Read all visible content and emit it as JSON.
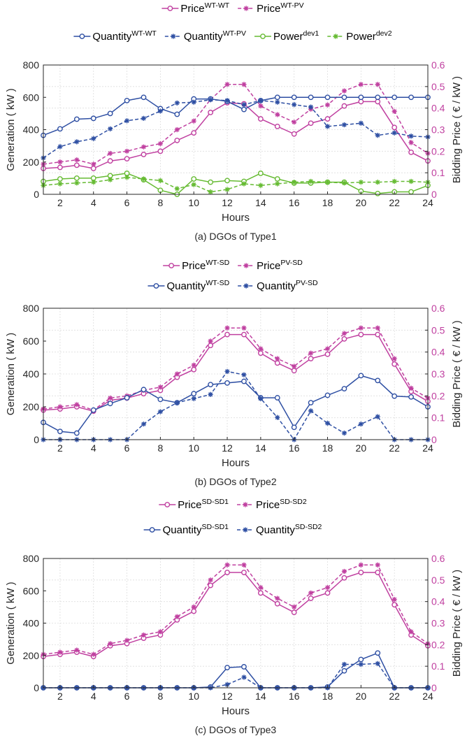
{
  "chart_data": [
    {
      "type": "line",
      "caption": "(a)  DGOs of Type1",
      "xlabel": "Hours",
      "ylabel": "Generation ( kW )",
      "y2label": "Bidding Price ( € / kW )",
      "xlim": [
        1,
        24
      ],
      "ylim": [
        0,
        800
      ],
      "y2lim": [
        0,
        0.6
      ],
      "xticks": [
        2,
        4,
        6,
        8,
        10,
        12,
        14,
        16,
        18,
        20,
        22,
        24
      ],
      "yticks": [
        0,
        200,
        400,
        600,
        800
      ],
      "y2ticks": [
        0,
        0.1,
        0.2,
        0.3,
        0.4,
        0.5,
        0.6
      ],
      "grid": true,
      "legend_placement": "top",
      "x": [
        1,
        2,
        3,
        4,
        5,
        6,
        7,
        8,
        9,
        10,
        11,
        12,
        13,
        14,
        15,
        16,
        17,
        18,
        19,
        20,
        21,
        22,
        23,
        24
      ],
      "series": [
        {
          "name": "Price",
          "sup": "WT-WT",
          "axis": "right",
          "color": "#c040a0",
          "marker": "circle",
          "dash": false,
          "values": [
            0.12,
            0.125,
            0.135,
            0.12,
            0.155,
            0.165,
            0.185,
            0.2,
            0.25,
            0.285,
            0.38,
            0.425,
            0.42,
            0.35,
            0.315,
            0.28,
            0.33,
            0.35,
            0.41,
            0.43,
            0.43,
            0.31,
            0.195,
            0.155
          ]
        },
        {
          "name": "Price",
          "sup": "WT-PV",
          "axis": "right",
          "color": "#c040a0",
          "marker": "star",
          "dash": true,
          "values": [
            0.14,
            0.15,
            0.16,
            0.14,
            0.19,
            0.2,
            0.22,
            0.235,
            0.3,
            0.34,
            0.44,
            0.51,
            0.51,
            0.41,
            0.37,
            0.335,
            0.395,
            0.415,
            0.48,
            0.51,
            0.51,
            0.385,
            0.24,
            0.19
          ]
        },
        {
          "name": "Quantity",
          "sup": "WT-WT",
          "axis": "left",
          "color": "#2e4fa3",
          "marker": "circle",
          "dash": false,
          "values": [
            365,
            405,
            465,
            470,
            500,
            580,
            600,
            530,
            495,
            590,
            590,
            575,
            525,
            580,
            600,
            600,
            600,
            600,
            600,
            600,
            600,
            600,
            600,
            600
          ]
        },
        {
          "name": "Quantity",
          "sup": "WT-PV",
          "axis": "left",
          "color": "#2e4fa3",
          "marker": "star",
          "dash": true,
          "values": [
            225,
            295,
            325,
            345,
            405,
            455,
            470,
            515,
            565,
            570,
            585,
            580,
            555,
            580,
            570,
            555,
            540,
            420,
            430,
            440,
            365,
            380,
            360,
            355
          ]
        },
        {
          "name": "Power",
          "sup": "dev1",
          "axis": "left",
          "color": "#66bb33",
          "marker": "circle",
          "dash": false,
          "values": [
            80,
            95,
            100,
            100,
            115,
            130,
            90,
            25,
            0,
            95,
            75,
            85,
            80,
            130,
            95,
            70,
            70,
            75,
            75,
            20,
            5,
            15,
            15,
            55
          ]
        },
        {
          "name": "Power",
          "sup": "dev2",
          "axis": "left",
          "color": "#66bb33",
          "marker": "star",
          "dash": true,
          "values": [
            55,
            65,
            70,
            75,
            90,
            105,
            95,
            85,
            35,
            60,
            15,
            30,
            65,
            55,
            65,
            75,
            80,
            75,
            70,
            75,
            75,
            80,
            80,
            75
          ]
        }
      ]
    },
    {
      "type": "line",
      "caption": "(b)  DGOs of Type2",
      "xlabel": "Hours",
      "ylabel": "Generation ( kW )",
      "y2label": "Bidding Price ( € / kW )",
      "xlim": [
        1,
        24
      ],
      "ylim": [
        0,
        800
      ],
      "y2lim": [
        0,
        0.6
      ],
      "xticks": [
        2,
        4,
        6,
        8,
        10,
        12,
        14,
        16,
        18,
        20,
        22,
        24
      ],
      "yticks": [
        0,
        200,
        400,
        600,
        800
      ],
      "y2ticks": [
        0,
        0.1,
        0.2,
        0.3,
        0.4,
        0.5,
        0.6
      ],
      "grid": true,
      "legend_placement": "top",
      "x": [
        1,
        2,
        3,
        4,
        5,
        6,
        7,
        8,
        9,
        10,
        11,
        12,
        13,
        14,
        15,
        16,
        17,
        18,
        19,
        20,
        21,
        22,
        23,
        24
      ],
      "series": [
        {
          "name": "Price",
          "sup": "WT-SD",
          "axis": "right",
          "color": "#c040a0",
          "marker": "circle",
          "dash": false,
          "values": [
            0.135,
            0.14,
            0.15,
            0.13,
            0.18,
            0.19,
            0.21,
            0.225,
            0.285,
            0.32,
            0.43,
            0.48,
            0.48,
            0.395,
            0.35,
            0.315,
            0.37,
            0.39,
            0.46,
            0.48,
            0.48,
            0.345,
            0.22,
            0.175
          ]
        },
        {
          "name": "Price",
          "sup": "PV-SD",
          "axis": "right",
          "color": "#c040a0",
          "marker": "star",
          "dash": true,
          "values": [
            0.14,
            0.15,
            0.16,
            0.135,
            0.19,
            0.2,
            0.225,
            0.24,
            0.3,
            0.34,
            0.45,
            0.51,
            0.51,
            0.415,
            0.37,
            0.335,
            0.395,
            0.415,
            0.485,
            0.51,
            0.51,
            0.37,
            0.235,
            0.19
          ]
        },
        {
          "name": "Quantity",
          "sup": "WT-SD",
          "axis": "left",
          "color": "#2e4fa3",
          "marker": "circle",
          "dash": false,
          "values": [
            105,
            50,
            40,
            180,
            220,
            255,
            305,
            245,
            225,
            280,
            335,
            345,
            355,
            255,
            255,
            75,
            225,
            270,
            310,
            390,
            360,
            265,
            260,
            200
          ]
        },
        {
          "name": "Quantity",
          "sup": "PV-SD",
          "axis": "left",
          "color": "#2e4fa3",
          "marker": "star",
          "dash": true,
          "values": [
            0,
            0,
            0,
            0,
            0,
            0,
            95,
            170,
            225,
            250,
            275,
            415,
            395,
            250,
            135,
            0,
            175,
            100,
            40,
            95,
            140,
            0,
            0,
            0
          ]
        }
      ]
    },
    {
      "type": "line",
      "caption": "(c)  DGOs of Type3",
      "xlabel": "Hours",
      "ylabel": "Generation ( kW )",
      "y2label": "Bidding Price ( € / kW )",
      "xlim": [
        1,
        24
      ],
      "ylim": [
        0,
        800
      ],
      "y2lim": [
        0,
        0.6
      ],
      "xticks": [
        2,
        4,
        6,
        8,
        10,
        12,
        14,
        16,
        18,
        20,
        22,
        24
      ],
      "yticks": [
        0,
        200,
        400,
        600,
        800
      ],
      "y2ticks": [
        0,
        0.1,
        0.2,
        0.3,
        0.4,
        0.5,
        0.6
      ],
      "grid": true,
      "legend_placement": "top",
      "x": [
        1,
        2,
        3,
        4,
        5,
        6,
        7,
        8,
        9,
        10,
        11,
        12,
        13,
        14,
        15,
        16,
        17,
        18,
        19,
        20,
        21,
        22,
        23,
        24
      ],
      "series": [
        {
          "name": "Price",
          "sup": "SD-SD1",
          "axis": "right",
          "color": "#c040a0",
          "marker": "circle",
          "dash": false,
          "values": [
            0.145,
            0.155,
            0.165,
            0.145,
            0.195,
            0.205,
            0.23,
            0.245,
            0.315,
            0.355,
            0.475,
            0.535,
            0.535,
            0.44,
            0.39,
            0.35,
            0.415,
            0.44,
            0.51,
            0.535,
            0.535,
            0.385,
            0.245,
            0.195
          ]
        },
        {
          "name": "Price",
          "sup": "SD-SD2",
          "axis": "right",
          "color": "#c040a0",
          "marker": "star",
          "dash": true,
          "values": [
            0.155,
            0.165,
            0.175,
            0.155,
            0.205,
            0.22,
            0.245,
            0.26,
            0.33,
            0.375,
            0.5,
            0.57,
            0.57,
            0.465,
            0.415,
            0.375,
            0.44,
            0.465,
            0.54,
            0.57,
            0.57,
            0.41,
            0.26,
            0.205
          ]
        },
        {
          "name": "Quantity",
          "sup": "SD-SD1",
          "axis": "left",
          "color": "#2e4fa3",
          "marker": "circle",
          "dash": false,
          "values": [
            0,
            0,
            0,
            0,
            0,
            0,
            0,
            0,
            0,
            0,
            5,
            125,
            130,
            0,
            0,
            0,
            0,
            5,
            105,
            175,
            215,
            0,
            0,
            0
          ]
        },
        {
          "name": "Quantity",
          "sup": "SD-SD2",
          "axis": "left",
          "color": "#2e4fa3",
          "marker": "star",
          "dash": true,
          "values": [
            0,
            0,
            0,
            0,
            0,
            0,
            0,
            0,
            0,
            0,
            0,
            20,
            65,
            0,
            0,
            0,
            0,
            0,
            145,
            145,
            150,
            0,
            0,
            0
          ]
        }
      ]
    }
  ]
}
